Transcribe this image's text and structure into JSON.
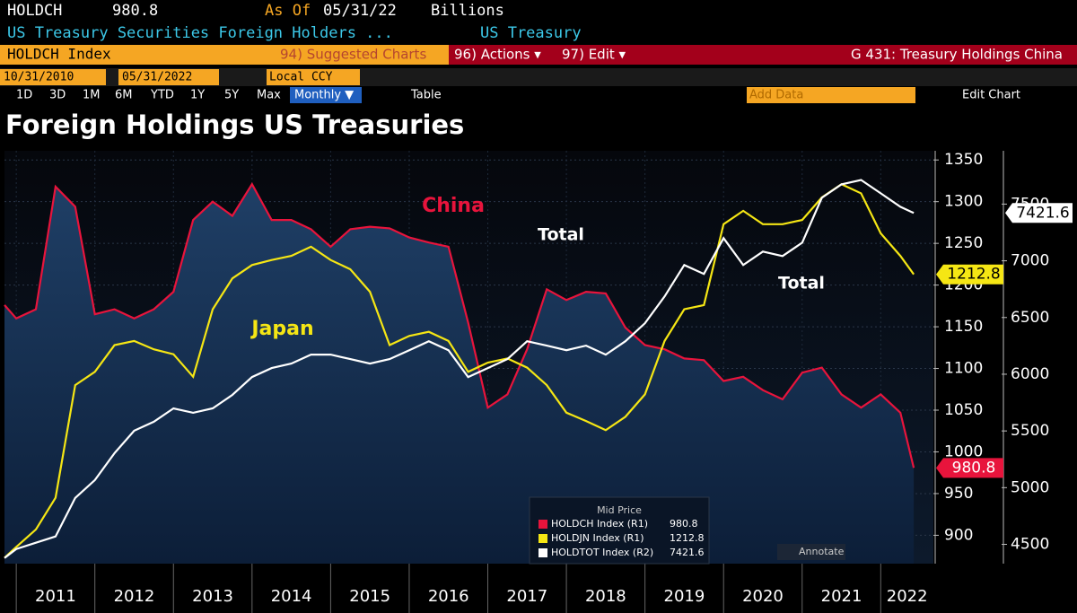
{
  "header": {
    "ticker": "HOLDCH",
    "last": "980.8",
    "as_of": "As Of",
    "date": "05/31/22",
    "unit": "Billions",
    "description": "US Treasury Securities Foreign Holders ...",
    "category": "US Treasury",
    "security": "HOLDCH Index",
    "suggested": "94) Suggested Charts",
    "actions": "96) Actions ▾",
    "edit": "97) Edit ▾",
    "page": "G 431: Treasury Holdings China",
    "start": "10/31/2010",
    "end": "05/31/2022",
    "currency": "Local CCY",
    "periods": [
      "1D",
      "3D",
      "1M",
      "6M",
      "YTD",
      "1Y",
      "5Y",
      "Max"
    ],
    "frequency": "Monthly ▼",
    "table": "Table",
    "add_data": "Add Data",
    "edit_chart": "Edit Chart",
    "annotate": "Annotate"
  },
  "chart_data": {
    "type": "line",
    "title": "Foreign Holdings US Treasuries",
    "legend_title": "Mid Price",
    "x": [
      2010.85,
      2011,
      2011.25,
      2011.5,
      2011.75,
      2012,
      2012.25,
      2012.5,
      2012.75,
      2013,
      2013.25,
      2013.5,
      2013.75,
      2014,
      2014.25,
      2014.5,
      2014.75,
      2015,
      2015.25,
      2015.5,
      2015.75,
      2016,
      2016.25,
      2016.5,
      2016.75,
      2017,
      2017.25,
      2017.5,
      2017.75,
      2018,
      2018.25,
      2018.5,
      2018.75,
      2019,
      2019.25,
      2019.5,
      2019.75,
      2020,
      2020.25,
      2020.5,
      2020.75,
      2021,
      2021.25,
      2021.5,
      2021.75,
      2022,
      2022.25,
      2022.42
    ],
    "series": [
      {
        "name": "HOLDCH Index (R1)",
        "color": "#e8143c",
        "fill": true,
        "values": [
          1176,
          1160,
          1171,
          1318,
          1294,
          1165,
          1171,
          1160,
          1171,
          1192,
          1278,
          1300,
          1283,
          1321,
          1278,
          1278,
          1267,
          1246,
          1267,
          1270,
          1268,
          1257,
          1251,
          1246,
          1155,
          1053,
          1069,
          1123,
          1195,
          1182,
          1192,
          1190,
          1149,
          1128,
          1123,
          1112,
          1110,
          1085,
          1090,
          1074,
          1063,
          1095,
          1101,
          1069,
          1053,
          1069,
          1047,
          980.8
        ]
      },
      {
        "name": "HOLDJN Index (R1)",
        "color": "#f5e614",
        "values": [
          873,
          886,
          907,
          945,
          1080,
          1096,
          1128,
          1133,
          1123,
          1117,
          1090,
          1171,
          1208,
          1224,
          1230,
          1235,
          1246,
          1230,
          1219,
          1192,
          1128,
          1139,
          1144,
          1133,
          1096,
          1107,
          1112,
          1101,
          1080,
          1047,
          1037,
          1026,
          1042,
          1069,
          1133,
          1171,
          1176,
          1273,
          1289,
          1273,
          1273,
          1278,
          1305,
          1321,
          1310,
          1262,
          1235,
          1212.8
        ]
      },
      {
        "name": "HOLDTOT Index (R2)",
        "color": "#ffffff",
        "axis": "y2",
        "values": [
          4380,
          4459,
          4514,
          4570,
          4909,
          5067,
          5304,
          5502,
          5581,
          5699,
          5660,
          5699,
          5818,
          5975,
          6054,
          6094,
          6173,
          6173,
          6133,
          6094,
          6133,
          6212,
          6291,
          6212,
          5975,
          6054,
          6133,
          6291,
          6252,
          6212,
          6252,
          6173,
          6291,
          6449,
          6686,
          6963,
          6884,
          7200,
          6963,
          7081,
          7042,
          7160,
          7555,
          7674,
          7713,
          7595,
          7476,
          7421.6
        ]
      }
    ],
    "xlim": [
      2010.85,
      2022.67
    ],
    "xticks": [
      2011,
      2012,
      2013,
      2014,
      2015,
      2016,
      2017,
      2018,
      2019,
      2020,
      2021,
      2022
    ],
    "ylim": [
      866,
      1361
    ],
    "yticks": [
      900,
      950,
      1000,
      1050,
      1100,
      1150,
      1200,
      1250,
      1300,
      1350
    ],
    "y2lim": [
      4330,
      7970
    ],
    "y2ticks": [
      4500,
      5000,
      5500,
      6000,
      6500,
      7000,
      7500
    ],
    "grid": true,
    "annotations": [
      {
        "text": "China",
        "color": "#e8143c"
      },
      {
        "text": "Japan",
        "color": "#f5e614"
      },
      {
        "text": "Total",
        "color": "#ffffff"
      },
      {
        "text": "Total",
        "color": "#ffffff"
      }
    ]
  }
}
